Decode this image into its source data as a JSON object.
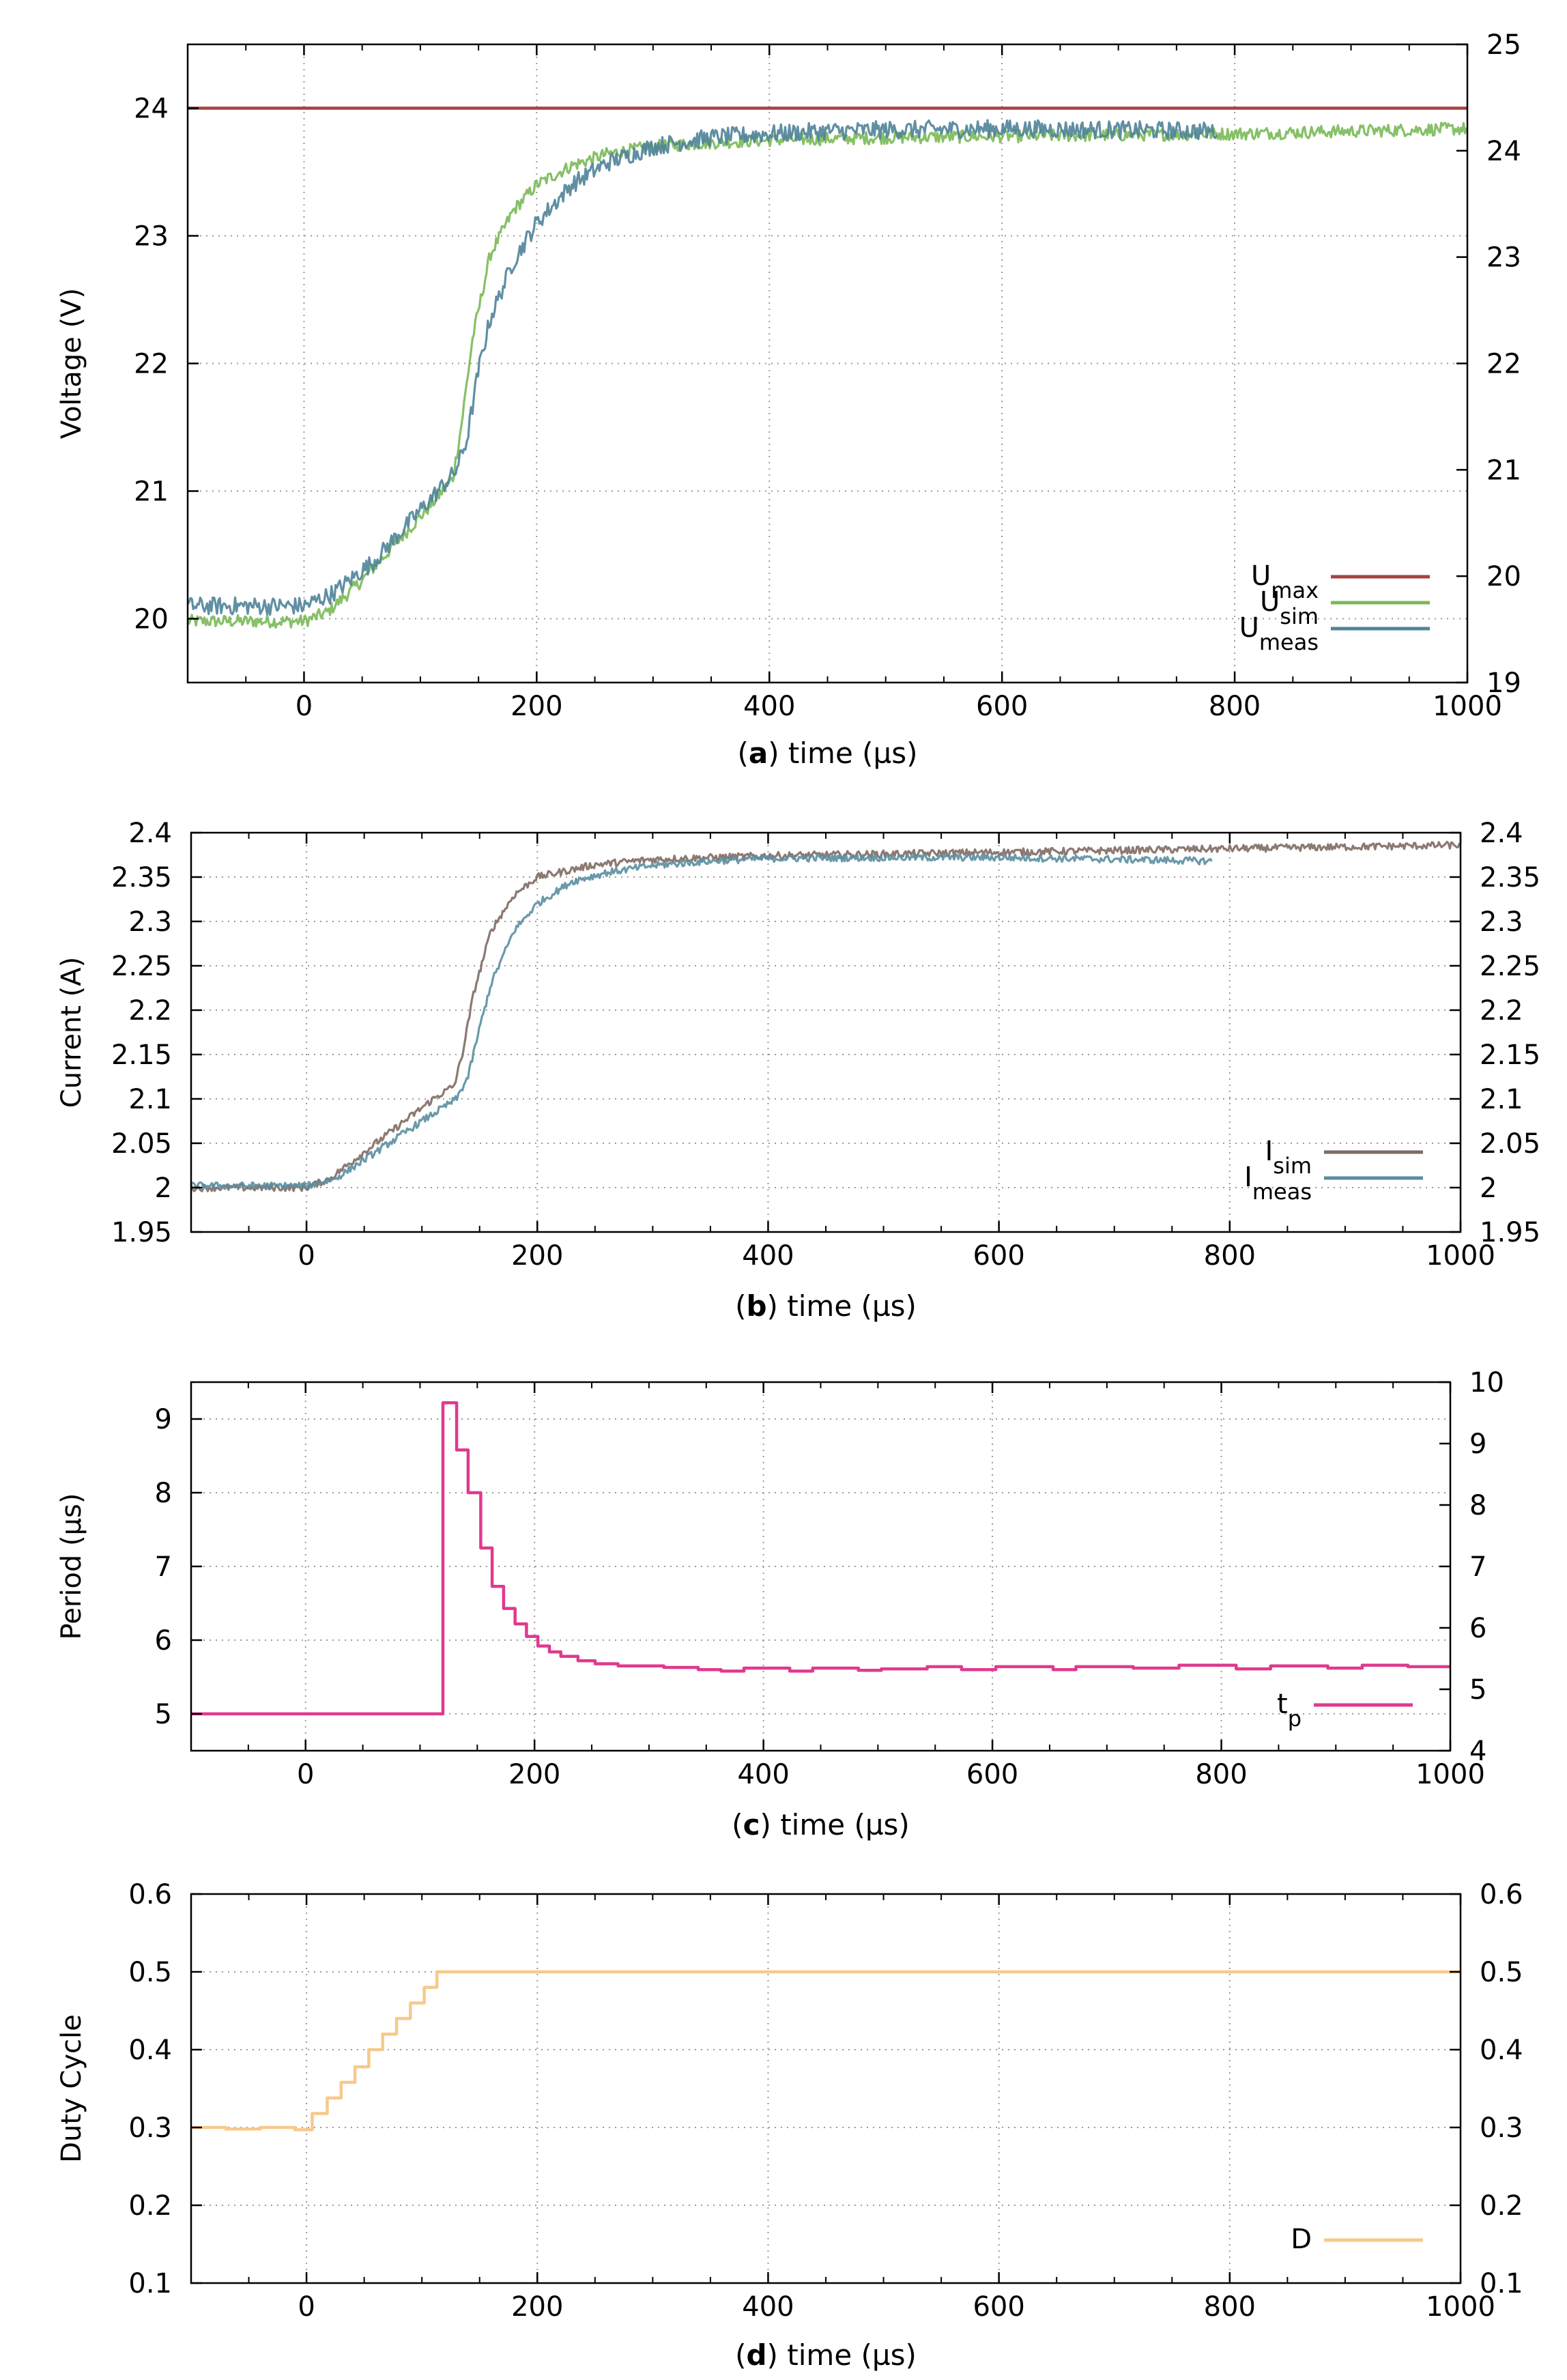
{
  "chart_data": [
    {
      "id": "a",
      "type": "line",
      "panel_label": "a",
      "xlabel": "time (µs)",
      "ylabel": "Voltage (V)",
      "xlim": [
        -100,
        1000
      ],
      "ylim": [
        19.5,
        24.5
      ],
      "y2lim": [
        19,
        25
      ],
      "xticks": [
        0,
        200,
        400,
        600,
        800,
        1000
      ],
      "yticks": [
        20,
        21,
        22,
        23,
        24
      ],
      "y2ticks": [
        19,
        20,
        21,
        22,
        23,
        24,
        25
      ],
      "legend_position": "bottom-right",
      "series": [
        {
          "name": "U",
          "sub": "max",
          "color": "#a8403f",
          "noise": 0,
          "step": false,
          "points": [
            [
              -100,
              24
            ],
            [
              1000,
              24
            ]
          ]
        },
        {
          "name": "U",
          "sub": "sim",
          "color": "#79b957",
          "noise": 0.05,
          "step": false,
          "points": [
            [
              -100,
              19.98
            ],
            [
              0,
              19.98
            ],
            [
              20,
              20.05
            ],
            [
              50,
              20.3
            ],
            [
              80,
              20.6
            ],
            [
              110,
              20.9
            ],
            [
              128,
              21.1
            ],
            [
              135,
              21.5
            ],
            [
              145,
              22.2
            ],
            [
              160,
              22.85
            ],
            [
              180,
              23.2
            ],
            [
              200,
              23.4
            ],
            [
              230,
              23.55
            ],
            [
              260,
              23.64
            ],
            [
              300,
              23.7
            ],
            [
              350,
              23.73
            ],
            [
              400,
              23.75
            ],
            [
              500,
              23.77
            ],
            [
              600,
              23.78
            ],
            [
              700,
              23.79
            ],
            [
              800,
              23.8
            ],
            [
              900,
              23.82
            ],
            [
              1000,
              23.84
            ]
          ]
        },
        {
          "name": "U",
          "sub": "meas",
          "color": "#4f8399",
          "noise": 0.07,
          "step": false,
          "points": [
            [
              -100,
              20.1
            ],
            [
              0,
              20.1
            ],
            [
              25,
              20.2
            ],
            [
              60,
              20.45
            ],
            [
              100,
              20.85
            ],
            [
              130,
              21.15
            ],
            [
              140,
              21.4
            ],
            [
              150,
              21.95
            ],
            [
              160,
              22.35
            ],
            [
              180,
              22.8
            ],
            [
              200,
              23.1
            ],
            [
              230,
              23.4
            ],
            [
              260,
              23.57
            ],
            [
              300,
              23.7
            ],
            [
              350,
              23.77
            ],
            [
              400,
              23.8
            ],
            [
              450,
              23.82
            ],
            [
              500,
              23.83
            ],
            [
              600,
              23.84
            ],
            [
              700,
              23.83
            ],
            [
              785,
              23.82
            ]
          ]
        }
      ]
    },
    {
      "id": "b",
      "type": "line",
      "panel_label": "b",
      "xlabel": "time (µs)",
      "ylabel": "Current (A)",
      "xlim": [
        -100,
        1000
      ],
      "ylim": [
        1.95,
        2.4
      ],
      "y2lim": [
        1.95,
        2.4
      ],
      "xticks": [
        0,
        200,
        400,
        600,
        800,
        1000
      ],
      "yticks": [
        1.95,
        2,
        2.05,
        2.1,
        2.15,
        2.2,
        2.25,
        2.3,
        2.35,
        2.4
      ],
      "y2ticks": [
        1.95,
        2,
        2.05,
        2.1,
        2.15,
        2.2,
        2.25,
        2.3,
        2.35,
        2.4
      ],
      "legend_position": "bottom-right",
      "series": [
        {
          "name": "I",
          "sub": "sim",
          "color": "#7f6a63",
          "noise": 0.004,
          "step": false,
          "points": [
            [
              -100,
              2.0
            ],
            [
              0,
              2.0
            ],
            [
              20,
              2.01
            ],
            [
              50,
              2.04
            ],
            [
              80,
              2.07
            ],
            [
              110,
              2.1
            ],
            [
              128,
              2.115
            ],
            [
              135,
              2.15
            ],
            [
              145,
              2.22
            ],
            [
              160,
              2.29
            ],
            [
              180,
              2.33
            ],
            [
              200,
              2.35
            ],
            [
              250,
              2.364
            ],
            [
              300,
              2.37
            ],
            [
              400,
              2.374
            ],
            [
              500,
              2.376
            ],
            [
              600,
              2.378
            ],
            [
              700,
              2.38
            ],
            [
              800,
              2.382
            ],
            [
              900,
              2.384
            ],
            [
              1000,
              2.386
            ]
          ]
        },
        {
          "name": "I",
          "sub": "meas",
          "color": "#5a8ea1",
          "noise": 0.004,
          "step": false,
          "points": [
            [
              -100,
              2.002
            ],
            [
              0,
              2.002
            ],
            [
              25,
              2.01
            ],
            [
              60,
              2.04
            ],
            [
              100,
              2.075
            ],
            [
              130,
              2.1
            ],
            [
              140,
              2.125
            ],
            [
              150,
              2.18
            ],
            [
              160,
              2.23
            ],
            [
              180,
              2.29
            ],
            [
              200,
              2.32
            ],
            [
              230,
              2.345
            ],
            [
              260,
              2.355
            ],
            [
              300,
              2.363
            ],
            [
              350,
              2.368
            ],
            [
              400,
              2.371
            ],
            [
              500,
              2.372
            ],
            [
              600,
              2.372
            ],
            [
              700,
              2.37
            ],
            [
              785,
              2.368
            ]
          ]
        }
      ]
    },
    {
      "id": "c",
      "type": "line",
      "panel_label": "c",
      "xlabel": "time (µs)",
      "ylabel": "Period (µs)",
      "xlim": [
        -100,
        1000
      ],
      "ylim": [
        4.5,
        9.5
      ],
      "y2lim": [
        4,
        10
      ],
      "xticks": [
        0,
        200,
        400,
        600,
        800,
        1000
      ],
      "yticks": [
        5,
        6,
        7,
        8,
        9
      ],
      "y2ticks": [
        4,
        5,
        6,
        7,
        8,
        9,
        10
      ],
      "legend_position": "bottom-right",
      "series": [
        {
          "name": "t",
          "sub": "p",
          "color": "#e0398f",
          "noise": 0,
          "step": true,
          "points": [
            [
              -100,
              5.0
            ],
            [
              120,
              5.0
            ],
            [
              120,
              9.22
            ],
            [
              132,
              9.22
            ],
            [
              132,
              8.58
            ],
            [
              142,
              8.58
            ],
            [
              142,
              8.0
            ],
            [
              153,
              8.0
            ],
            [
              153,
              7.25
            ],
            [
              163,
              7.25
            ],
            [
              163,
              6.73
            ],
            [
              173,
              6.73
            ],
            [
              173,
              6.43
            ],
            [
              183,
              6.43
            ],
            [
              183,
              6.22
            ],
            [
              193,
              6.22
            ],
            [
              193,
              6.05
            ],
            [
              203,
              6.05
            ],
            [
              203,
              5.92
            ],
            [
              213,
              5.92
            ],
            [
              213,
              5.84
            ],
            [
              223,
              5.84
            ],
            [
              223,
              5.78
            ],
            [
              238,
              5.78
            ],
            [
              238,
              5.72
            ],
            [
              253,
              5.72
            ],
            [
              253,
              5.68
            ],
            [
              273,
              5.68
            ],
            [
              273,
              5.65
            ],
            [
              313,
              5.65
            ],
            [
              313,
              5.63
            ],
            [
              343,
              5.63
            ],
            [
              343,
              5.6
            ],
            [
              363,
              5.6
            ],
            [
              363,
              5.58
            ],
            [
              383,
              5.58
            ],
            [
              383,
              5.62
            ],
            [
              423,
              5.62
            ],
            [
              423,
              5.58
            ],
            [
              443,
              5.58
            ],
            [
              443,
              5.62
            ],
            [
              483,
              5.62
            ],
            [
              483,
              5.59
            ],
            [
              503,
              5.59
            ],
            [
              503,
              5.61
            ],
            [
              543,
              5.61
            ],
            [
              543,
              5.64
            ],
            [
              573,
              5.64
            ],
            [
              573,
              5.6
            ],
            [
              603,
              5.6
            ],
            [
              603,
              5.64
            ],
            [
              653,
              5.64
            ],
            [
              653,
              5.6
            ],
            [
              673,
              5.6
            ],
            [
              673,
              5.64
            ],
            [
              723,
              5.64
            ],
            [
              723,
              5.62
            ],
            [
              763,
              5.62
            ],
            [
              763,
              5.66
            ],
            [
              813,
              5.66
            ],
            [
              813,
              5.61
            ],
            [
              843,
              5.61
            ],
            [
              843,
              5.65
            ],
            [
              893,
              5.65
            ],
            [
              893,
              5.62
            ],
            [
              923,
              5.62
            ],
            [
              923,
              5.66
            ],
            [
              963,
              5.66
            ],
            [
              963,
              5.64
            ],
            [
              1000,
              5.64
            ]
          ]
        }
      ]
    },
    {
      "id": "d",
      "type": "line",
      "panel_label": "d",
      "xlabel": "time (µs)",
      "ylabel": "Duty Cycle",
      "xlim": [
        -100,
        1000
      ],
      "ylim": [
        0.1,
        0.6
      ],
      "y2lim": [
        0.1,
        0.6
      ],
      "xticks": [
        0,
        200,
        400,
        600,
        800,
        1000
      ],
      "yticks": [
        0.1,
        0.2,
        0.3,
        0.4,
        0.5,
        0.6
      ],
      "y2ticks": [
        0.1,
        0.2,
        0.3,
        0.4,
        0.5,
        0.6
      ],
      "legend_position": "bottom-right",
      "series": [
        {
          "name": "D",
          "sub": "",
          "color": "#f7c98a",
          "noise": 0,
          "step": true,
          "points": [
            [
              -100,
              0.3
            ],
            [
              -70,
              0.3
            ],
            [
              -70,
              0.298
            ],
            [
              -40,
              0.298
            ],
            [
              -40,
              0.3
            ],
            [
              -10,
              0.3
            ],
            [
              -10,
              0.297
            ],
            [
              5,
              0.297
            ],
            [
              5,
              0.318
            ],
            [
              18,
              0.318
            ],
            [
              18,
              0.338
            ],
            [
              30,
              0.338
            ],
            [
              30,
              0.358
            ],
            [
              42,
              0.358
            ],
            [
              42,
              0.378
            ],
            [
              54,
              0.378
            ],
            [
              54,
              0.4
            ],
            [
              66,
              0.4
            ],
            [
              66,
              0.42
            ],
            [
              78,
              0.42
            ],
            [
              78,
              0.44
            ],
            [
              90,
              0.44
            ],
            [
              90,
              0.46
            ],
            [
              102,
              0.46
            ],
            [
              102,
              0.48
            ],
            [
              113,
              0.48
            ],
            [
              113,
              0.5
            ],
            [
              1000,
              0.5
            ]
          ]
        }
      ]
    }
  ]
}
